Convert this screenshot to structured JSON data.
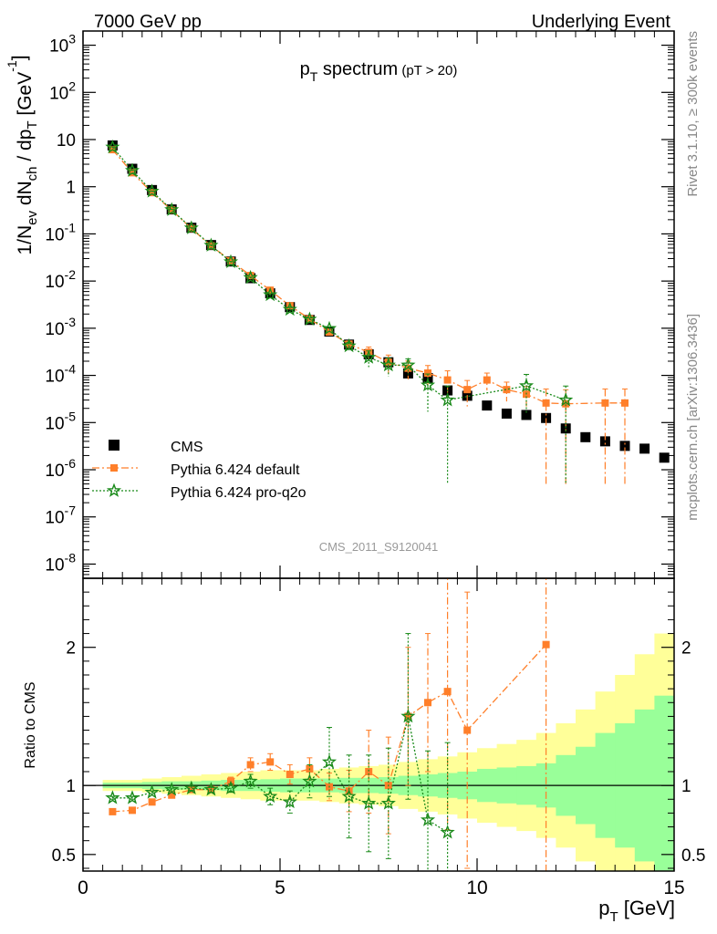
{
  "header": {
    "left": "7000 GeV pp",
    "right": "Underlying Event",
    "side_top": "Rivet 3.1.10, ≥ 300k events",
    "side_bottom": "mcplots.cern.ch [arXiv:1306.3436]",
    "analysis_tag": "CMS_2011_S9120041"
  },
  "chart_data": [
    {
      "type": "scatter",
      "panel": "main",
      "title": "p_T spectrum",
      "title_note": "(pT > 20)",
      "ylabel": "1/N_ev dN_ch / dp_T [GeV^-1]",
      "yscale": "log",
      "ylim": [
        5e-09,
        2000
      ],
      "xlim": [
        0,
        15
      ],
      "y_tick_labels": [
        "10^-8",
        "10^-7",
        "10^-6",
        "10^-5",
        "10^-4",
        "10^-3",
        "10^-2",
        "10^-1",
        "1",
        "10",
        "10^2",
        "10^3"
      ],
      "legend_position": "lower-left",
      "series": [
        {
          "name": "CMS",
          "color": "#000000",
          "marker": "square",
          "x": [
            0.75,
            1.25,
            1.75,
            2.25,
            2.75,
            3.25,
            3.75,
            4.25,
            4.75,
            5.25,
            5.75,
            6.25,
            6.75,
            7.25,
            7.75,
            8.25,
            8.75,
            9.25,
            9.75,
            10.25,
            10.75,
            11.25,
            11.75,
            12.25,
            12.75,
            13.25,
            13.75,
            14.25,
            14.75
          ],
          "y": [
            7.5,
            2.4,
            0.85,
            0.33,
            0.135,
            0.058,
            0.026,
            0.0115,
            0.0055,
            0.0028,
            0.0015,
            0.00085,
            0.00045,
            0.00028,
            0.00019,
            0.00011,
            8.8e-05,
            4.8e-05,
            3.7e-05,
            2.3e-05,
            1.55e-05,
            1.45e-05,
            1.25e-05,
            7.5e-06,
            4.9e-06,
            4e-06,
            3.2e-06,
            2.8e-06,
            1.8e-06
          ]
        },
        {
          "name": "Pythia 6.424 default",
          "color": "#ff7f2a",
          "marker": "square",
          "x": [
            0.75,
            1.25,
            1.75,
            2.25,
            2.75,
            3.25,
            3.75,
            4.25,
            4.75,
            5.25,
            5.75,
            6.25,
            6.75,
            7.25,
            7.75,
            8.25,
            8.75,
            9.25,
            9.75,
            10.25,
            10.75,
            11.25,
            11.75,
            12.25,
            13.25,
            13.75
          ],
          "y": [
            6.1,
            1.98,
            0.75,
            0.32,
            0.13,
            0.056,
            0.027,
            0.0131,
            0.0064,
            0.003,
            0.00158,
            0.00083,
            0.00046,
            0.00031,
            0.00019,
            0.000142,
            0.000112,
            8e-05,
            5e-05,
            8e-05,
            5e-05,
            4e-05,
            2.6e-05,
            2.5e-05,
            2.6e-05,
            2.6e-05
          ],
          "yerr": [
            0.1,
            0.03,
            0.01,
            0.005,
            0.002,
            0.001,
            0.0005,
            0.0003,
            0.0002,
            0.0001,
            8e-05,
            6e-05,
            5e-05,
            9e-05,
            8e-05,
            6e-05,
            5e-05,
            4.5e-05,
            2.8e-05,
            3.2e-05,
            2.2e-05,
            1.8e-05,
            2.55e-05,
            2.45e-05,
            2.55e-05,
            2.55e-05
          ]
        },
        {
          "name": "Pythia 6.424 pro-q2o",
          "color": "#1a8a1a",
          "marker": "star",
          "x": [
            0.75,
            1.25,
            1.75,
            2.25,
            2.75,
            3.25,
            3.75,
            4.25,
            4.75,
            5.25,
            5.75,
            6.25,
            6.75,
            7.25,
            7.75,
            8.25,
            8.75,
            9.25,
            11.25,
            12.25
          ],
          "y": [
            6.9,
            2.2,
            0.8,
            0.325,
            0.133,
            0.057,
            0.0255,
            0.0118,
            0.0051,
            0.0025,
            0.00155,
            0.00098,
            0.00042,
            0.00024,
            0.000165,
            0.000165,
            6.2e-05,
            3e-05,
            6e-05,
            3e-05
          ],
          "yerr": [
            0.1,
            0.03,
            0.01,
            0.005,
            0.002,
            0.001,
            0.0005,
            0.0003,
            0.0003,
            0.0003,
            0.0001,
            8e-05,
            8e-05,
            9e-05,
            7e-05,
            6e-05,
            4.5e-05,
            2.95e-05,
            4.5e-05,
            2.95e-05
          ]
        }
      ]
    },
    {
      "type": "line",
      "panel": "ratio",
      "ylabel": "Ratio to CMS",
      "xlabel": "p_T [GeV]",
      "ylim": [
        0.38,
        2.5
      ],
      "xlim": [
        0,
        15
      ],
      "x_ticks": [
        0,
        5,
        10,
        15
      ],
      "y_ticks": [
        0.5,
        1,
        2
      ],
      "reference_line": 1,
      "uncertainty_bands": {
        "bin_edges": [
          0.5,
          1.0,
          1.5,
          2.0,
          2.5,
          3.0,
          3.5,
          4.0,
          4.5,
          5.0,
          5.5,
          6.0,
          6.5,
          7.0,
          7.5,
          8.0,
          8.5,
          9.0,
          9.5,
          10.0,
          10.5,
          11.0,
          11.5,
          12.0,
          12.5,
          13.0,
          13.5,
          14.0,
          14.5,
          15.0
        ],
        "inner_halfwidth": [
          0.02,
          0.02,
          0.025,
          0.03,
          0.03,
          0.035,
          0.04,
          0.04,
          0.045,
          0.05,
          0.05,
          0.05,
          0.055,
          0.055,
          0.06,
          0.07,
          0.08,
          0.09,
          0.1,
          0.12,
          0.13,
          0.14,
          0.16,
          0.22,
          0.28,
          0.38,
          0.45,
          0.55,
          0.65
        ],
        "outer_halfwidth": [
          0.04,
          0.04,
          0.05,
          0.06,
          0.07,
          0.08,
          0.09,
          0.1,
          0.11,
          0.11,
          0.11,
          0.12,
          0.13,
          0.14,
          0.15,
          0.17,
          0.19,
          0.21,
          0.24,
          0.27,
          0.3,
          0.33,
          0.38,
          0.45,
          0.55,
          0.68,
          0.8,
          0.95,
          1.1
        ],
        "inner_color": "#99ff99",
        "outer_color": "#ffff99"
      },
      "series": [
        {
          "name": "Pythia 6.424 default",
          "color": "#ff7f2a",
          "x": [
            0.75,
            1.25,
            1.75,
            2.25,
            2.75,
            3.25,
            3.75,
            4.25,
            4.75,
            5.25,
            5.75,
            6.25,
            6.75,
            7.25,
            7.75,
            8.25,
            8.75,
            9.25,
            9.75,
            11.75
          ],
          "y": [
            0.81,
            0.82,
            0.88,
            0.93,
            0.97,
            0.97,
            1.03,
            1.15,
            1.17,
            1.08,
            1.12,
            0.99,
            0.96,
            1.1,
            1.0,
            1.5,
            1.6,
            1.68,
            1.4,
            2.02
          ],
          "yerr": [
            0.01,
            0.01,
            0.01,
            0.01,
            0.015,
            0.02,
            0.03,
            0.05,
            0.06,
            0.07,
            0.08,
            0.1,
            0.15,
            0.3,
            0.35,
            0.5,
            0.5,
            1.0,
            1.0,
            2.0
          ]
        },
        {
          "name": "Pythia 6.424 pro-q2o",
          "color": "#1a8a1a",
          "x": [
            0.75,
            1.25,
            1.75,
            2.25,
            2.75,
            3.25,
            3.75,
            4.25,
            4.75,
            5.25,
            5.75,
            6.25,
            6.75,
            7.25,
            7.75,
            8.25,
            8.75,
            9.25
          ],
          "y": [
            0.91,
            0.91,
            0.95,
            0.97,
            0.98,
            0.97,
            0.98,
            1.03,
            0.92,
            0.88,
            1.03,
            1.17,
            0.92,
            0.87,
            0.87,
            1.5,
            0.75,
            0.66
          ],
          "yerr": [
            0.01,
            0.01,
            0.01,
            0.01,
            0.015,
            0.02,
            0.03,
            0.05,
            0.06,
            0.08,
            0.12,
            0.25,
            0.3,
            0.35,
            0.4,
            0.6,
            0.5,
            0.65
          ]
        }
      ]
    }
  ]
}
